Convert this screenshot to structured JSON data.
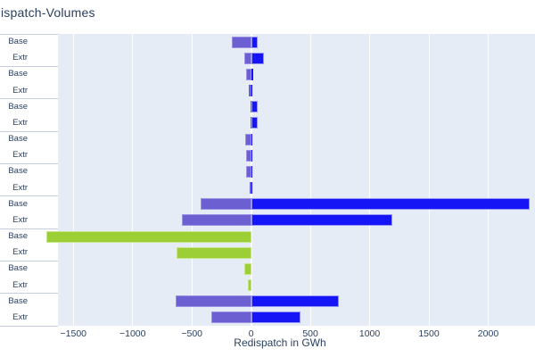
{
  "title_bar": {
    "window_title": "ispatch-Volumes"
  },
  "colors": {
    "text": "#2a3f5f",
    "plot_bg": "#e5ecf6",
    "grid": "#ffffff",
    "divider": "#c6cede",
    "purple": "#6c5fd2",
    "purple_border": "#9d93e6",
    "blue": "#1515f5",
    "blue_border": "#9595fa",
    "green": "#9bcf35",
    "green_border": "#c9e58b"
  },
  "chart_data": {
    "type": "bar",
    "orientation": "horizontal",
    "title": "ispatch-Volumes",
    "xlabel": "Redispatch in GWh",
    "x_range": [
      -1630,
      2395
    ],
    "grid": true,
    "legend": false,
    "x_ticks": [
      {
        "value": -1500,
        "label": "−1500"
      },
      {
        "value": -1000,
        "label": "−1000"
      },
      {
        "value": -500,
        "label": "−500"
      },
      {
        "value": 0,
        "label": "0"
      },
      {
        "value": 500,
        "label": "500"
      },
      {
        "value": 1000,
        "label": "1000"
      },
      {
        "value": 1500,
        "label": "1500"
      },
      {
        "value": 2000,
        "label": "2000"
      }
    ],
    "y_group_count": 9,
    "rows": [
      {
        "label": "Base",
        "segments": [
          {
            "series": "purple",
            "value": -165
          },
          {
            "series": "blue",
            "value": 55
          }
        ]
      },
      {
        "label": "Extr",
        "segments": [
          {
            "series": "purple",
            "value": -60
          },
          {
            "series": "blue",
            "value": 105
          }
        ]
      },
      {
        "label": "Base",
        "segments": [
          {
            "series": "purple",
            "value": -40
          },
          {
            "series": "blue",
            "value": 20
          }
        ]
      },
      {
        "label": "Extr",
        "segments": [
          {
            "series": "purple",
            "value": -18
          },
          {
            "series": "blue",
            "value": 6
          }
        ]
      },
      {
        "label": "Base",
        "segments": [
          {
            "series": "purple",
            "value": -6
          },
          {
            "series": "blue",
            "value": 52
          }
        ]
      },
      {
        "label": "Extr",
        "segments": [
          {
            "series": "purple",
            "value": -6
          },
          {
            "series": "blue",
            "value": 58
          }
        ]
      },
      {
        "label": "Base",
        "segments": [
          {
            "series": "purple",
            "value": -50
          },
          {
            "series": "blue",
            "value": 6
          }
        ]
      },
      {
        "label": "Extr",
        "segments": [
          {
            "series": "purple",
            "value": -40
          },
          {
            "series": "blue",
            "value": 3
          }
        ]
      },
      {
        "label": "Base",
        "segments": [
          {
            "series": "purple",
            "value": -42
          },
          {
            "series": "blue",
            "value": 12
          }
        ]
      },
      {
        "label": "Extr",
        "segments": [
          {
            "series": "purple",
            "value": -12
          },
          {
            "series": "blue",
            "value": 5
          }
        ]
      },
      {
        "label": "Base",
        "segments": [
          {
            "series": "purple",
            "value": -430
          },
          {
            "series": "blue",
            "value": 2350
          }
        ]
      },
      {
        "label": "Extr",
        "segments": [
          {
            "series": "purple",
            "value": -585
          },
          {
            "series": "blue",
            "value": 1190
          }
        ]
      },
      {
        "label": "Base",
        "segments": [
          {
            "series": "green",
            "value": -1730
          }
        ]
      },
      {
        "label": "Extr",
        "segments": [
          {
            "series": "green",
            "value": -630
          }
        ]
      },
      {
        "label": "Base",
        "segments": [
          {
            "series": "green",
            "value": -60
          }
        ]
      },
      {
        "label": "Extr",
        "segments": [
          {
            "series": "green",
            "value": -28
          }
        ]
      },
      {
        "label": "Base",
        "segments": [
          {
            "series": "purple",
            "value": -640
          },
          {
            "series": "blue",
            "value": 740
          }
        ]
      },
      {
        "label": "Extr",
        "segments": [
          {
            "series": "purple",
            "value": -335
          },
          {
            "series": "blue",
            "value": 420
          }
        ]
      }
    ]
  }
}
